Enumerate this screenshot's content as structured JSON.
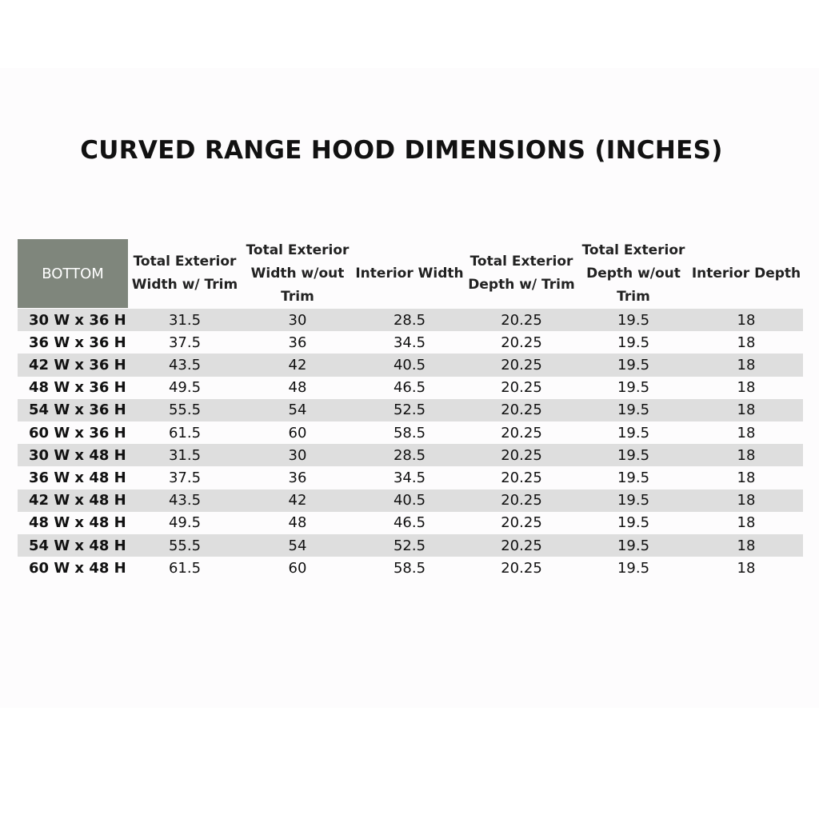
{
  "header": {
    "title": "CURVED RANGE HOOD DIMENSIONS (INCHES)"
  },
  "table": {
    "columns": [
      "BOTTOM",
      "Total Exterior Width w/ Trim",
      "Total Exterior Width w/out Trim",
      "Interior Width",
      "Total Exterior Depth w/ Trim",
      "Total Exterior Depth w/out Trim",
      "Interior Depth"
    ],
    "rows": [
      [
        "30 W x 36 H",
        "31.5",
        "30",
        "28.5",
        "20.25",
        "19.5",
        "18"
      ],
      [
        "36 W x 36 H",
        "37.5",
        "36",
        "34.5",
        "20.25",
        "19.5",
        "18"
      ],
      [
        "42 W x 36 H",
        "43.5",
        "42",
        "40.5",
        "20.25",
        "19.5",
        "18"
      ],
      [
        "48 W x 36 H",
        "49.5",
        "48",
        "46.5",
        "20.25",
        "19.5",
        "18"
      ],
      [
        "54 W x 36 H",
        "55.5",
        "54",
        "52.5",
        "20.25",
        "19.5",
        "18"
      ],
      [
        "60 W x 36 H",
        "61.5",
        "60",
        "58.5",
        "20.25",
        "19.5",
        "18"
      ],
      [
        "30 W x 48 H",
        "31.5",
        "30",
        "28.5",
        "20.25",
        "19.5",
        "18"
      ],
      [
        "36 W x 48 H",
        "37.5",
        "36",
        "34.5",
        "20.25",
        "19.5",
        "18"
      ],
      [
        "42 W x 48 H",
        "43.5",
        "42",
        "40.5",
        "20.25",
        "19.5",
        "18"
      ],
      [
        "48 W x 48 H",
        "49.5",
        "48",
        "46.5",
        "20.25",
        "19.5",
        "18"
      ],
      [
        "54 W x 48 H",
        "55.5",
        "54",
        "52.5",
        "20.25",
        "19.5",
        "18"
      ],
      [
        "60 W x 48 H",
        "61.5",
        "60",
        "58.5",
        "20.25",
        "19.5",
        "18"
      ]
    ]
  }
}
